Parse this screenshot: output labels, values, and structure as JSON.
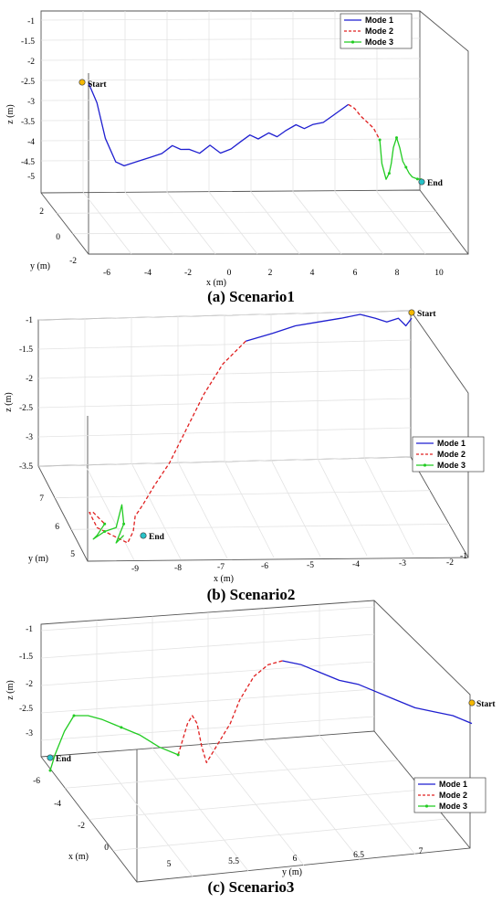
{
  "legend_labels": [
    "Mode 1",
    "Mode 2",
    "Mode 3"
  ],
  "mode_colors": {
    "Mode 1": "#1f1fd0",
    "Mode 2": "#e02020",
    "Mode 3": "#22cc22"
  },
  "start_marker_color": "#f5b800",
  "end_marker_color": "#27c2c8",
  "chart_data": [
    {
      "type": "line",
      "caption": "(a) Scenario1",
      "xlabel": "x (m)",
      "ylabel": "y (m)",
      "zlabel": "z (m)",
      "x_ticks": [
        "-6",
        "-4",
        "-2",
        "0",
        "2",
        "4",
        "6",
        "8",
        "10"
      ],
      "y_ticks": [
        "2",
        "0",
        "-2"
      ],
      "z_ticks": [
        "-1",
        "-1.5",
        "-2",
        "-2.5",
        "-3",
        "-3.5",
        "-4",
        "-4.5",
        "-5"
      ],
      "legend_position": "top-right",
      "start_label": "Start",
      "end_label": "End",
      "series": [
        {
          "name": "Mode 1",
          "x": [
            -6.4,
            -6.0,
            -5.6,
            -5.1,
            -4.7,
            -4.1,
            -3.5,
            -2.9,
            -2.4,
            -2.0,
            -1.6,
            -1.1,
            -0.6,
            -0.1,
            0.4,
            0.9,
            1.3,
            1.7,
            2.2,
            2.6,
            3.0,
            3.5,
            3.9,
            4.3,
            4.8,
            5.2,
            5.6,
            6.0
          ],
          "z": [
            -2.5,
            -3.0,
            -3.9,
            -4.5,
            -4.6,
            -4.5,
            -4.4,
            -4.3,
            -4.1,
            -4.2,
            -4.2,
            -4.3,
            -4.1,
            -4.3,
            -4.2,
            -4.0,
            -3.85,
            -3.95,
            -3.8,
            -3.9,
            -3.75,
            -3.6,
            -3.7,
            -3.6,
            -3.55,
            -3.4,
            -3.25,
            -3.1
          ]
        },
        {
          "name": "Mode 2",
          "x": [
            6.0,
            6.3,
            6.6,
            6.9,
            7.2,
            7.5
          ],
          "z": [
            -3.1,
            -3.2,
            -3.4,
            -3.55,
            -3.7,
            -4.0
          ]
        },
        {
          "name": "Mode 3",
          "x": [
            7.5,
            7.6,
            7.8,
            7.95,
            8.05,
            8.15,
            8.3,
            8.45,
            8.6,
            8.75,
            8.9,
            9.05,
            9.3,
            9.5
          ],
          "z": [
            -4.0,
            -4.6,
            -5.0,
            -4.85,
            -4.6,
            -4.2,
            -3.95,
            -4.2,
            -4.55,
            -4.7,
            -4.85,
            -4.95,
            -5.0,
            -5.0
          ]
        }
      ]
    },
    {
      "type": "line",
      "caption": "(b) Scenario2",
      "xlabel": "x (m)",
      "ylabel": "y (m)",
      "zlabel": "z (m)",
      "x_ticks": [
        "-9",
        "-8",
        "-7",
        "-6",
        "-5",
        "-4",
        "-3",
        "-2",
        "-1"
      ],
      "y_ticks": [
        "7",
        "6",
        "5"
      ],
      "z_ticks": [
        "-1",
        "-1.5",
        "-2",
        "-2.5",
        "-3",
        "-3.5"
      ],
      "legend_position": "lower-right",
      "start_label": "Start",
      "end_label": "End",
      "series": [
        {
          "name": "Mode 1",
          "x": [
            -5.5,
            -4.8,
            -4.2,
            -3.6,
            -3.0,
            -2.5,
            -2.1,
            -1.8,
            -1.5,
            -1.3,
            -1.15
          ],
          "z": [
            -1.3,
            -1.2,
            -1.1,
            -1.05,
            -1.0,
            -0.95,
            -1.0,
            -1.05,
            -1.0,
            -1.1,
            -1.0
          ]
        },
        {
          "name": "Mode 2",
          "x": [
            -5.5,
            -6.1,
            -6.6,
            -7.1,
            -7.5,
            -7.9,
            -8.2,
            -8.4,
            -8.45,
            -8.6,
            -9.0,
            -9.4,
            -9.6,
            -9.5,
            -9.2
          ],
          "z": [
            -1.3,
            -1.6,
            -2.0,
            -2.5,
            -2.9,
            -3.2,
            -3.45,
            -3.6,
            -3.8,
            -3.95,
            -3.85,
            -3.75,
            -3.55,
            -3.55,
            -3.7
          ]
        },
        {
          "name": "Mode 3",
          "x": [
            -9.2,
            -9.4,
            -9.5,
            -9.2,
            -8.9,
            -8.75,
            -8.7,
            -8.9,
            -8.7
          ],
          "z": [
            -3.7,
            -3.85,
            -3.9,
            -3.8,
            -3.75,
            -3.45,
            -3.7,
            -3.95,
            -3.85
          ]
        }
      ]
    },
    {
      "type": "line",
      "caption": "(c) Scenario3",
      "xlabel": "x (m)",
      "ylabel": "y (m)",
      "zlabel": "z (m)",
      "x_ticks": [
        "-6",
        "-4",
        "-2",
        "0"
      ],
      "y_ticks": [
        "5",
        "5.5",
        "6",
        "6.5",
        "7"
      ],
      "z_ticks": [
        "-1",
        "-1.5",
        "-2",
        "-2.5",
        "-3"
      ],
      "legend_position": "lower-right",
      "start_label": "Start",
      "end_label": "End",
      "series": [
        {
          "name": "Mode 1",
          "y": [
            7.5,
            7.3,
            7.1,
            6.9,
            6.7,
            6.5,
            6.3,
            6.1,
            5.9,
            5.7,
            5.5
          ],
          "z": [
            -2.6,
            -2.5,
            -2.45,
            -2.4,
            -2.3,
            -2.2,
            -2.1,
            -2.05,
            -1.95,
            -1.85,
            -1.8
          ]
        },
        {
          "name": "Mode 2",
          "y": [
            5.5,
            5.35,
            5.2,
            5.05,
            4.95,
            4.85,
            4.75,
            4.7,
            4.65,
            4.6,
            4.55,
            4.5,
            4.4
          ],
          "z": [
            -1.8,
            -1.85,
            -2.0,
            -2.3,
            -2.6,
            -2.8,
            -3.0,
            -3.1,
            -2.9,
            -2.6,
            -2.5,
            -2.6,
            -3.0
          ]
        },
        {
          "name": "Mode 3",
          "y": [
            4.4,
            4.2,
            4.0,
            3.8,
            3.6,
            3.45,
            3.3,
            3.2,
            3.1,
            3.05
          ],
          "z": [
            -3.0,
            -2.9,
            -2.75,
            -2.65,
            -2.55,
            -2.5,
            -2.5,
            -2.7,
            -3.0,
            -3.2
          ]
        }
      ]
    }
  ]
}
